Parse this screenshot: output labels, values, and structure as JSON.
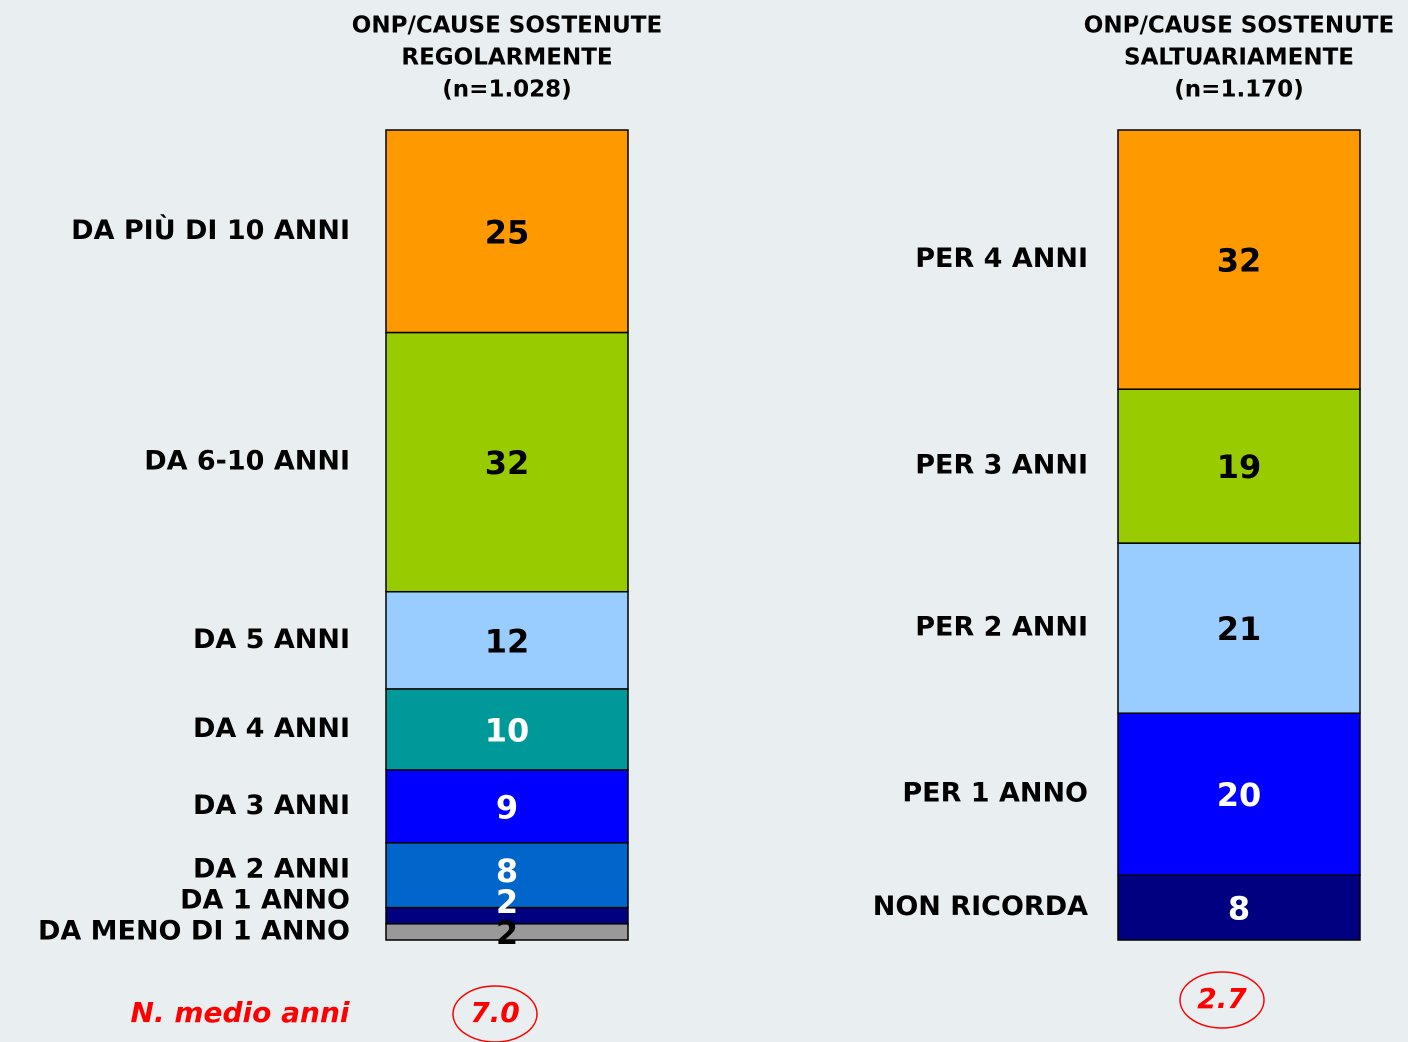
{
  "chart_data": [
    {
      "type": "stacked-bar",
      "title": [
        "ONP/CAUSE SOSTENUTE",
        "REGOLARMENTE",
        "(n=1.028)"
      ],
      "ylim": [
        0,
        100
      ],
      "series": [
        {
          "name": "DA MENO DI 1 ANNO",
          "color": "#999999",
          "values": [
            2
          ]
        },
        {
          "name": "DA 1 ANNO",
          "color": "#000080",
          "values": [
            2
          ]
        },
        {
          "name": "DA 2 ANNI",
          "color": "#0066cc",
          "values": [
            8
          ]
        },
        {
          "name": "DA 3 ANNI",
          "color": "#0000ff",
          "values": [
            9
          ]
        },
        {
          "name": "DA 4 ANNI",
          "color": "#009999",
          "values": [
            10
          ]
        },
        {
          "name": "DA 5 ANNI",
          "color": "#99ccff",
          "values": [
            12
          ]
        },
        {
          "name": "DA 6-10 ANNI",
          "color": "#99cc00",
          "values": [
            32
          ]
        },
        {
          "name": "DA PIÙ DI 10 ANNI",
          "color": "#ff9900",
          "values": [
            25
          ]
        }
      ],
      "mean_label": "N. medio anni",
      "mean": {
        "value": 7,
        "label": "7.0"
      }
    },
    {
      "type": "stacked-bar",
      "title": [
        "ONP/CAUSE SOSTENUTE",
        "SALTUARIAMENTE",
        "(n=1.170)"
      ],
      "ylim": [
        0,
        100
      ],
      "series": [
        {
          "name": "NON RICORDA",
          "color": "#000080",
          "values": [
            8
          ]
        },
        {
          "name": "PER 1 ANNO",
          "color": "#0000ff",
          "values": [
            20
          ]
        },
        {
          "name": "PER 2 ANNI",
          "color": "#99ccff",
          "values": [
            21
          ]
        },
        {
          "name": "PER 3 ANNI",
          "color": "#99cc00",
          "values": [
            19
          ]
        },
        {
          "name": "PER 4 ANNI",
          "color": "#ff9900",
          "values": [
            32
          ]
        }
      ],
      "mean": 2.7
    }
  ]
}
